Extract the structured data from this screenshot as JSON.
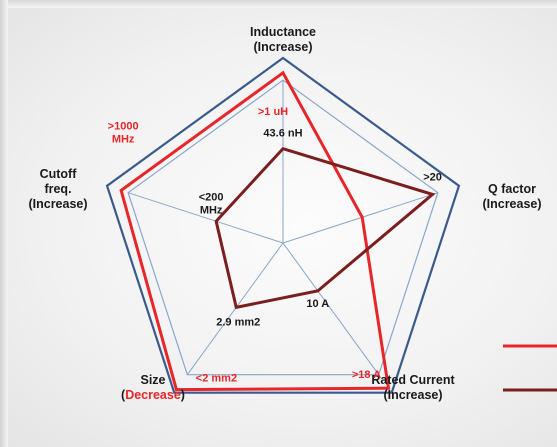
{
  "chart_data": {
    "type": "radar",
    "colors": {
      "red_series": "#e8262a",
      "dark_series": "#7a1e1e",
      "frame": "#3b5a8c",
      "grid": "#8aa6cc"
    },
    "axes": [
      {
        "lines": [
          "Inductance",
          "(Increase)"
        ]
      },
      {
        "lines": [
          "Q factor",
          "(Increase)"
        ]
      },
      {
        "lines": [
          "Rated Current",
          "(Increase)"
        ]
      },
      {
        "lines": [
          "Size",
          "(Decrease)"
        ],
        "emphasis": "Decrease"
      },
      {
        "lines": [
          "Cutoff",
          "freq.",
          "(Increase)"
        ]
      }
    ],
    "series": [
      {
        "color": "#e8262a",
        "values": [
          0.92,
          0.45,
          0.97,
          0.98,
          0.92
        ],
        "labels": [
          ">1 uH",
          "",
          ">18 A",
          "<2 mm2",
          ">1000\nMHz"
        ]
      },
      {
        "color": "#7a1e1e",
        "values": [
          0.51,
          0.85,
          0.32,
          0.43,
          0.38
        ],
        "labels": [
          "43.6 nH",
          ">20",
          "10 A",
          "2.9 mm2",
          "<200\nMHz"
        ]
      }
    ],
    "legend_position": "right"
  }
}
